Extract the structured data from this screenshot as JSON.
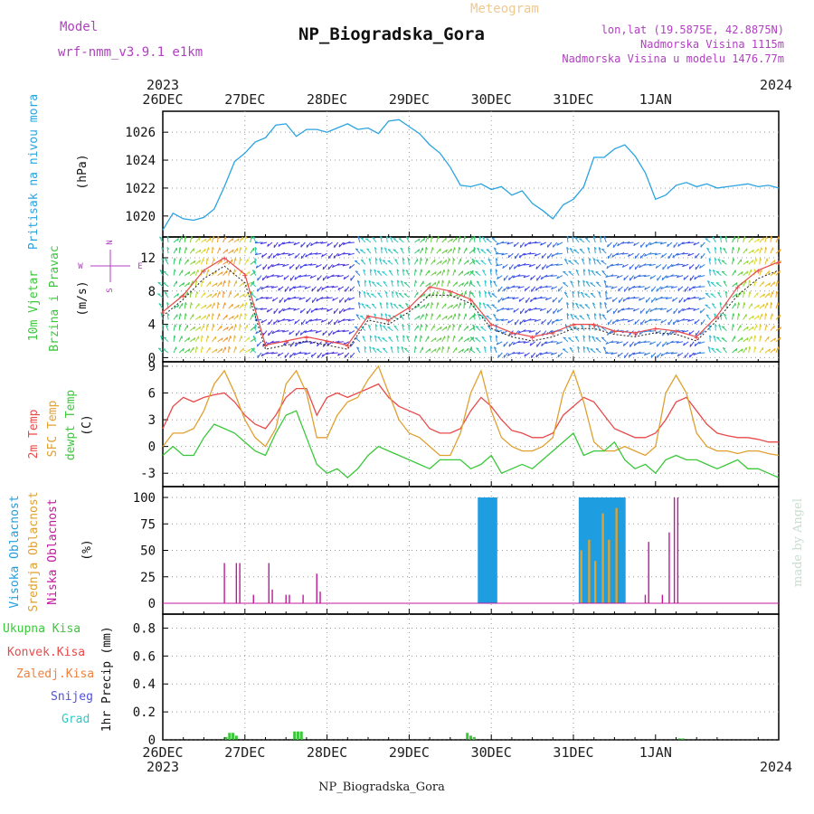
{
  "header": {
    "model_label": "Model",
    "model_name": "wrf-nmm_v3.9.1  e1km",
    "title": "NP_Biogradska_Gora",
    "subtitle": "Meteogram",
    "location": "lon,lat (19.5875E, 42.8875N)",
    "altitude": "Nadmorska Visina 1115m",
    "model_altitude": "Nadmorska Visina u modelu 1476.77m",
    "footer_title": "NP_Biogradska_Gora",
    "credit": "made by Angel"
  },
  "colors": {
    "pressure": "#29a3e0",
    "temp2m": "#e84a4a",
    "sfc_temp": "#e0a030",
    "dewpoint": "#3ac83a",
    "cloud_high": "#1e9ee0",
    "cloud_mid": "#e0a030",
    "cloud_low": "#c0189c",
    "precip_total": "#3ac83a",
    "precip_conv": "#e84a4a",
    "precip_frozen": "#f0803c",
    "precip_snow": "#5050e0",
    "precip_graupel": "#30c8c8",
    "label_purple": "#b040c0",
    "subtitle_color": "#f0c890"
  },
  "axis": {
    "top_year_left": "2023",
    "top_year_right": "2024",
    "bottom_year_left": "2023",
    "bottom_year_right": "2024",
    "days": [
      "26DEC",
      "27DEC",
      "28DEC",
      "29DEC",
      "30DEC",
      "31DEC",
      "1JAN"
    ]
  },
  "chart_data": [
    {
      "type": "line",
      "panel": "pressure",
      "ylabel_main": "Pritisak na nivou mora",
      "unit": "(hPa)",
      "ylim": [
        1018.5,
        1027.5
      ],
      "yticks": [
        1020,
        1022,
        1024,
        1026
      ],
      "x_hours": [
        0,
        3,
        6,
        9,
        12,
        15,
        18,
        21,
        24,
        27,
        30,
        33,
        36,
        39,
        42,
        45,
        48,
        51,
        54,
        57,
        60,
        63,
        66,
        69,
        72,
        75,
        78,
        81,
        84,
        87,
        90,
        93,
        96,
        99,
        102,
        105,
        108,
        111,
        114,
        117,
        120,
        123,
        126,
        129,
        132,
        135,
        138,
        141,
        144,
        147,
        150,
        153,
        156,
        159,
        162,
        165,
        168,
        171,
        174,
        177,
        180
      ],
      "series": [
        {
          "values": [
            1019.0,
            1020.2,
            1019.8,
            1019.7,
            1019.9,
            1020.5,
            1022.1,
            1023.9,
            1024.5,
            1025.3,
            1025.6,
            1026.5,
            1026.6,
            1025.7,
            1026.2,
            1026.2,
            1026.0,
            1026.3,
            1026.6,
            1026.2,
            1026.3,
            1025.9,
            1026.8,
            1026.9,
            1026.4,
            1025.9,
            1025.1,
            1024.5,
            1023.5,
            1022.2,
            1022.1,
            1022.3,
            1021.9,
            1022.1,
            1021.5,
            1021.8,
            1020.9,
            1020.4,
            1019.8,
            1020.8,
            1021.2,
            1022.1,
            1024.2,
            1024.2,
            1024.8,
            1025.1,
            1024.3,
            1023.1,
            1021.2,
            1021.5,
            1022.2,
            1022.4,
            1022.1,
            1022.3,
            1022.0,
            1022.1,
            1022.2,
            1022.3,
            1022.1,
            1022.2,
            1022.0
          ]
        }
      ]
    },
    {
      "type": "line",
      "panel": "wind",
      "ylabel_main": "10m Vjetar",
      "ylabel_sub": "Brzina i Pravac",
      "unit": "(m/s)",
      "compass": [
        "N",
        "W",
        "E",
        "S"
      ],
      "ylim": [
        -0.5,
        14.5
      ],
      "yticks": [
        0,
        4,
        8,
        12
      ],
      "x_hours": [
        0,
        6,
        12,
        18,
        24,
        30,
        36,
        42,
        48,
        54,
        60,
        66,
        72,
        78,
        84,
        90,
        96,
        102,
        108,
        114,
        120,
        126,
        132,
        138,
        144,
        150,
        156,
        162,
        168,
        174,
        180
      ],
      "series": [
        {
          "name": "speed",
          "values": [
            5.0,
            7.0,
            9.5,
            11.0,
            9.0,
            1.0,
            1.5,
            2.0,
            1.5,
            1.0,
            4.5,
            4.0,
            5.5,
            7.5,
            7.5,
            6.5,
            3.5,
            2.5,
            2.0,
            2.5,
            3.5,
            3.5,
            2.8,
            2.5,
            3.0,
            2.8,
            2.0,
            4.5,
            7.5,
            9.5,
            10.5
          ]
        },
        {
          "name": "gust",
          "values": [
            5.5,
            7.5,
            10.5,
            12.0,
            10.0,
            1.5,
            2.0,
            2.5,
            2.0,
            1.5,
            5.0,
            4.5,
            6.0,
            8.5,
            8.0,
            7.0,
            4.0,
            3.0,
            2.5,
            3.0,
            4.0,
            4.0,
            3.2,
            3.0,
            3.5,
            3.2,
            2.5,
            5.0,
            8.5,
            10.5,
            11.5
          ]
        }
      ]
    },
    {
      "type": "line",
      "panel": "temperature",
      "ylabel_main": "2m Temp",
      "ylabel_sub": "SFC Temp",
      "ylabel_third": "dewpt Temp",
      "unit": "(C)",
      "ylim": [
        -4.5,
        9.5
      ],
      "yticks": [
        -3,
        0,
        3,
        6,
        9
      ],
      "x_hours": [
        0,
        3,
        6,
        9,
        12,
        15,
        18,
        21,
        24,
        27,
        30,
        33,
        36,
        39,
        42,
        45,
        48,
        51,
        54,
        57,
        60,
        63,
        66,
        69,
        72,
        75,
        78,
        81,
        84,
        87,
        90,
        93,
        96,
        99,
        102,
        105,
        108,
        111,
        114,
        117,
        120,
        123,
        126,
        129,
        132,
        135,
        138,
        141,
        144,
        147,
        150,
        153,
        156,
        159,
        162,
        165,
        168,
        171,
        174,
        177,
        180
      ],
      "series": [
        {
          "name": "2m Temp",
          "values": [
            2.0,
            4.5,
            5.5,
            5.0,
            5.5,
            5.8,
            6.0,
            5.0,
            3.5,
            2.5,
            2.0,
            3.5,
            5.5,
            6.5,
            6.5,
            3.5,
            5.5,
            6.0,
            5.5,
            6.0,
            6.5,
            7.0,
            5.5,
            4.5,
            4.0,
            3.5,
            2.0,
            1.5,
            1.5,
            2.0,
            4.0,
            5.5,
            4.5,
            3.0,
            1.8,
            1.5,
            1.0,
            1.0,
            1.5,
            3.5,
            4.5,
            5.5,
            5.0,
            3.5,
            2.0,
            1.5,
            1.0,
            1.0,
            1.5,
            3.0,
            5.0,
            5.5,
            4.0,
            2.5,
            1.5,
            1.2,
            1.0,
            1.0,
            0.8,
            0.5,
            0.5
          ]
        },
        {
          "name": "SFC Temp",
          "values": [
            0.0,
            1.5,
            1.5,
            2.0,
            4.0,
            7.0,
            8.5,
            6.0,
            3.0,
            1.0,
            0.0,
            2.0,
            7.0,
            8.5,
            6.0,
            1.0,
            1.0,
            3.5,
            5.0,
            5.5,
            7.5,
            9.0,
            6.0,
            3.0,
            1.5,
            1.0,
            0.0,
            -1.0,
            -1.0,
            1.5,
            6.0,
            8.5,
            4.0,
            1.0,
            0.0,
            -0.5,
            -0.5,
            0.0,
            1.0,
            6.0,
            8.5,
            5.0,
            0.5,
            -0.5,
            -0.5,
            0.0,
            -0.5,
            -1.0,
            0.0,
            6.0,
            8.0,
            6.0,
            1.5,
            0.0,
            -0.5,
            -0.5,
            -0.8,
            -0.5,
            -0.5,
            -0.8,
            -1.0
          ]
        },
        {
          "name": "dewpt Temp",
          "values": [
            -1.0,
            0.0,
            -1.0,
            -1.0,
            1.0,
            2.5,
            2.0,
            1.5,
            0.5,
            -0.5,
            -1.0,
            1.5,
            3.5,
            4.0,
            1.0,
            -2.0,
            -3.0,
            -2.5,
            -3.5,
            -2.5,
            -1.0,
            0.0,
            -0.5,
            -1.0,
            -1.5,
            -2.0,
            -2.5,
            -1.5,
            -1.5,
            -1.5,
            -2.5,
            -2.0,
            -1.0,
            -3.0,
            -2.5,
            -2.0,
            -2.5,
            -1.5,
            -0.5,
            0.5,
            1.5,
            -1.0,
            -0.5,
            -0.5,
            0.5,
            -1.5,
            -2.5,
            -2.0,
            -3.0,
            -1.5,
            -1.0,
            -1.5,
            -1.5,
            -2.0,
            -2.5,
            -2.0,
            -1.5,
            -2.5,
            -2.5,
            -3.0,
            -3.5
          ]
        }
      ]
    },
    {
      "type": "bar",
      "panel": "clouds",
      "ylabel_main": "Visoka Oblacnost",
      "ylabel_sub": "Srednja Oblacnost",
      "ylabel_third": "Niska Oblacnost",
      "unit": "(%)",
      "ylim": [
        0,
        100
      ],
      "yticks": [
        0,
        25,
        50,
        75,
        100
      ],
      "series": [
        {
          "name": "Visoka Oblacnost",
          "x_hours": [
            92.5,
            93.3,
            94.1,
            94.9,
            95.7,
            96.5,
            97.3,
            122.0,
            122.8,
            123.6,
            124.4,
            125.2,
            126.0,
            126.8,
            127.6,
            128.4,
            129.2,
            130.0,
            130.8,
            131.6,
            132.4,
            133.2,
            134.0,
            134.8
          ],
          "values": [
            100,
            100,
            100,
            100,
            100,
            100,
            100,
            100,
            100,
            100,
            100,
            100,
            100,
            100,
            100,
            100,
            100,
            100,
            100,
            100,
            100,
            100,
            100,
            100
          ]
        },
        {
          "name": "Srednja Oblacnost",
          "x_hours": [
            122.3,
            124.6,
            126.4,
            128.6,
            130.4,
            132.6
          ],
          "values": [
            50,
            60,
            40,
            85,
            60,
            90
          ]
        },
        {
          "name": "Niska Oblacnost",
          "x_hours": [
            18.0,
            21.5,
            22.5,
            26.5,
            31.0,
            32.0,
            36.0,
            37.0,
            41.0,
            45.0,
            46.0,
            141.0,
            142.0,
            146.0,
            148.0,
            149.5,
            150.5
          ],
          "values": [
            38,
            38,
            38,
            8,
            38,
            13,
            8,
            8,
            8,
            28,
            11,
            8,
            58,
            8,
            67,
            100,
            100
          ]
        }
      ]
    },
    {
      "type": "bar",
      "panel": "precip",
      "ylabel_main": "1hr Precip",
      "unit": "(mm)",
      "legend": [
        "Ukupna  Kisa",
        "Konvek.Kisa",
        "Zaledj.Kisa",
        "Snijeg",
        "Grad"
      ],
      "ylim": [
        0,
        0.9
      ],
      "yticks": [
        0,
        0.2,
        0.4,
        0.6,
        0.8
      ],
      "series": [
        {
          "name": "Ukupna  Kisa",
          "x_hours": [
            18.5,
            19.5,
            20.5,
            21.5,
            38.5,
            39.5,
            40.5,
            89.0,
            90.0,
            91.0,
            151.0,
            152.0
          ],
          "values": [
            0.02,
            0.05,
            0.05,
            0.03,
            0.06,
            0.06,
            0.06,
            0.05,
            0.03,
            0.02,
            0.01,
            0.01
          ]
        }
      ]
    }
  ]
}
